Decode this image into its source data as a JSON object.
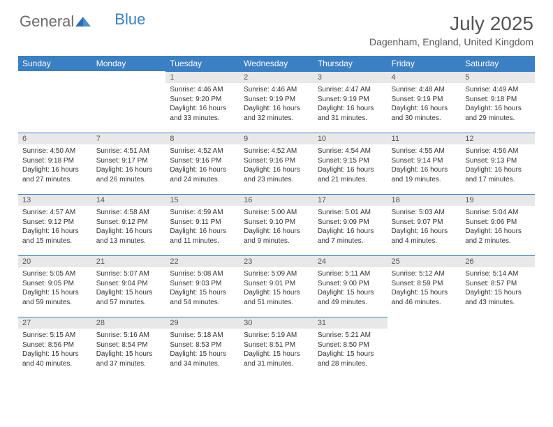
{
  "logo": {
    "text_gray": "General",
    "text_blue": "Blue"
  },
  "header": {
    "month_title": "July 2025",
    "location": "Dagenham, England, United Kingdom"
  },
  "colors": {
    "header_bg": "#3b7fc4",
    "daynum_bg": "#e8e8e8",
    "border": "#3b7fc4"
  },
  "weekdays": [
    "Sunday",
    "Monday",
    "Tuesday",
    "Wednesday",
    "Thursday",
    "Friday",
    "Saturday"
  ],
  "weeks": [
    [
      null,
      null,
      {
        "n": "1",
        "sunrise": "Sunrise: 4:46 AM",
        "sunset": "Sunset: 9:20 PM",
        "day1": "Daylight: 16 hours",
        "day2": "and 33 minutes."
      },
      {
        "n": "2",
        "sunrise": "Sunrise: 4:46 AM",
        "sunset": "Sunset: 9:19 PM",
        "day1": "Daylight: 16 hours",
        "day2": "and 32 minutes."
      },
      {
        "n": "3",
        "sunrise": "Sunrise: 4:47 AM",
        "sunset": "Sunset: 9:19 PM",
        "day1": "Daylight: 16 hours",
        "day2": "and 31 minutes."
      },
      {
        "n": "4",
        "sunrise": "Sunrise: 4:48 AM",
        "sunset": "Sunset: 9:19 PM",
        "day1": "Daylight: 16 hours",
        "day2": "and 30 minutes."
      },
      {
        "n": "5",
        "sunrise": "Sunrise: 4:49 AM",
        "sunset": "Sunset: 9:18 PM",
        "day1": "Daylight: 16 hours",
        "day2": "and 29 minutes."
      }
    ],
    [
      {
        "n": "6",
        "sunrise": "Sunrise: 4:50 AM",
        "sunset": "Sunset: 9:18 PM",
        "day1": "Daylight: 16 hours",
        "day2": "and 27 minutes."
      },
      {
        "n": "7",
        "sunrise": "Sunrise: 4:51 AM",
        "sunset": "Sunset: 9:17 PM",
        "day1": "Daylight: 16 hours",
        "day2": "and 26 minutes."
      },
      {
        "n": "8",
        "sunrise": "Sunrise: 4:52 AM",
        "sunset": "Sunset: 9:16 PM",
        "day1": "Daylight: 16 hours",
        "day2": "and 24 minutes."
      },
      {
        "n": "9",
        "sunrise": "Sunrise: 4:52 AM",
        "sunset": "Sunset: 9:16 PM",
        "day1": "Daylight: 16 hours",
        "day2": "and 23 minutes."
      },
      {
        "n": "10",
        "sunrise": "Sunrise: 4:54 AM",
        "sunset": "Sunset: 9:15 PM",
        "day1": "Daylight: 16 hours",
        "day2": "and 21 minutes."
      },
      {
        "n": "11",
        "sunrise": "Sunrise: 4:55 AM",
        "sunset": "Sunset: 9:14 PM",
        "day1": "Daylight: 16 hours",
        "day2": "and 19 minutes."
      },
      {
        "n": "12",
        "sunrise": "Sunrise: 4:56 AM",
        "sunset": "Sunset: 9:13 PM",
        "day1": "Daylight: 16 hours",
        "day2": "and 17 minutes."
      }
    ],
    [
      {
        "n": "13",
        "sunrise": "Sunrise: 4:57 AM",
        "sunset": "Sunset: 9:12 PM",
        "day1": "Daylight: 16 hours",
        "day2": "and 15 minutes."
      },
      {
        "n": "14",
        "sunrise": "Sunrise: 4:58 AM",
        "sunset": "Sunset: 9:12 PM",
        "day1": "Daylight: 16 hours",
        "day2": "and 13 minutes."
      },
      {
        "n": "15",
        "sunrise": "Sunrise: 4:59 AM",
        "sunset": "Sunset: 9:11 PM",
        "day1": "Daylight: 16 hours",
        "day2": "and 11 minutes."
      },
      {
        "n": "16",
        "sunrise": "Sunrise: 5:00 AM",
        "sunset": "Sunset: 9:10 PM",
        "day1": "Daylight: 16 hours",
        "day2": "and 9 minutes."
      },
      {
        "n": "17",
        "sunrise": "Sunrise: 5:01 AM",
        "sunset": "Sunset: 9:09 PM",
        "day1": "Daylight: 16 hours",
        "day2": "and 7 minutes."
      },
      {
        "n": "18",
        "sunrise": "Sunrise: 5:03 AM",
        "sunset": "Sunset: 9:07 PM",
        "day1": "Daylight: 16 hours",
        "day2": "and 4 minutes."
      },
      {
        "n": "19",
        "sunrise": "Sunrise: 5:04 AM",
        "sunset": "Sunset: 9:06 PM",
        "day1": "Daylight: 16 hours",
        "day2": "and 2 minutes."
      }
    ],
    [
      {
        "n": "20",
        "sunrise": "Sunrise: 5:05 AM",
        "sunset": "Sunset: 9:05 PM",
        "day1": "Daylight: 15 hours",
        "day2": "and 59 minutes."
      },
      {
        "n": "21",
        "sunrise": "Sunrise: 5:07 AM",
        "sunset": "Sunset: 9:04 PM",
        "day1": "Daylight: 15 hours",
        "day2": "and 57 minutes."
      },
      {
        "n": "22",
        "sunrise": "Sunrise: 5:08 AM",
        "sunset": "Sunset: 9:03 PM",
        "day1": "Daylight: 15 hours",
        "day2": "and 54 minutes."
      },
      {
        "n": "23",
        "sunrise": "Sunrise: 5:09 AM",
        "sunset": "Sunset: 9:01 PM",
        "day1": "Daylight: 15 hours",
        "day2": "and 51 minutes."
      },
      {
        "n": "24",
        "sunrise": "Sunrise: 5:11 AM",
        "sunset": "Sunset: 9:00 PM",
        "day1": "Daylight: 15 hours",
        "day2": "and 49 minutes."
      },
      {
        "n": "25",
        "sunrise": "Sunrise: 5:12 AM",
        "sunset": "Sunset: 8:59 PM",
        "day1": "Daylight: 15 hours",
        "day2": "and 46 minutes."
      },
      {
        "n": "26",
        "sunrise": "Sunrise: 5:14 AM",
        "sunset": "Sunset: 8:57 PM",
        "day1": "Daylight: 15 hours",
        "day2": "and 43 minutes."
      }
    ],
    [
      {
        "n": "27",
        "sunrise": "Sunrise: 5:15 AM",
        "sunset": "Sunset: 8:56 PM",
        "day1": "Daylight: 15 hours",
        "day2": "and 40 minutes."
      },
      {
        "n": "28",
        "sunrise": "Sunrise: 5:16 AM",
        "sunset": "Sunset: 8:54 PM",
        "day1": "Daylight: 15 hours",
        "day2": "and 37 minutes."
      },
      {
        "n": "29",
        "sunrise": "Sunrise: 5:18 AM",
        "sunset": "Sunset: 8:53 PM",
        "day1": "Daylight: 15 hours",
        "day2": "and 34 minutes."
      },
      {
        "n": "30",
        "sunrise": "Sunrise: 5:19 AM",
        "sunset": "Sunset: 8:51 PM",
        "day1": "Daylight: 15 hours",
        "day2": "and 31 minutes."
      },
      {
        "n": "31",
        "sunrise": "Sunrise: 5:21 AM",
        "sunset": "Sunset: 8:50 PM",
        "day1": "Daylight: 15 hours",
        "day2": "and 28 minutes."
      },
      null,
      null
    ]
  ]
}
